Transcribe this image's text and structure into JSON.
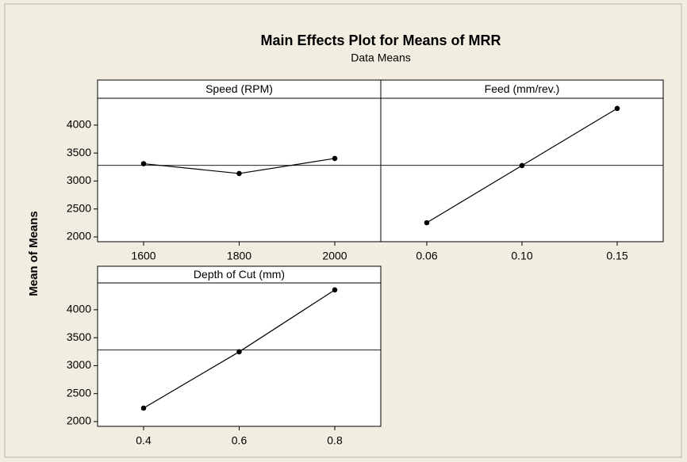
{
  "title": "Main Effects Plot for Means of MRR",
  "subtitle": "Data Means",
  "ylabel": "Mean of Means",
  "chart_data": [
    {
      "type": "line",
      "title": "Speed (RPM)",
      "categories": [
        "1600",
        "1800",
        "2000"
      ],
      "values": [
        3310,
        3135,
        3404
      ],
      "reference": 3280,
      "color": "#000000",
      "ylim": [
        1915,
        4480
      ],
      "yticks": [
        2000,
        2500,
        3000,
        3500,
        4000
      ]
    },
    {
      "type": "line",
      "title": "Feed (mm/rev.)",
      "categories": [
        "0.06",
        "0.10",
        "0.15"
      ],
      "values": [
        2255,
        3277,
        4298
      ],
      "reference": 3280,
      "color": "#000000",
      "ylim": [
        1915,
        4480
      ]
    },
    {
      "type": "line",
      "title": "Depth of Cut (mm)",
      "categories": [
        "0.4",
        "0.6",
        "0.8"
      ],
      "values": [
        2241,
        3248,
        4355
      ],
      "reference": 3280,
      "color": "#000000",
      "ylim": [
        1915,
        4480
      ],
      "yticks": [
        2000,
        2500,
        3000,
        3500,
        4000
      ]
    }
  ]
}
